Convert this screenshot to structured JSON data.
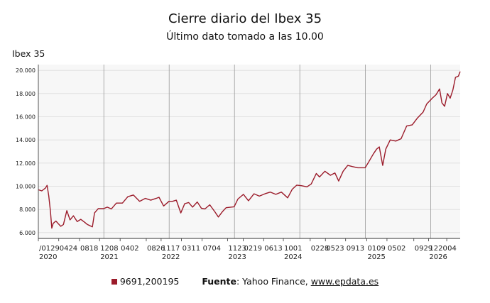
{
  "header": {
    "title": "Cierre diario del Ibex 35",
    "subtitle": "Último dato tomado a las 10.00"
  },
  "chart_data": {
    "type": "line",
    "ylabel": "Ibex 35",
    "ylim": [
      5500,
      20500
    ],
    "yticks": [
      {
        "value": 6000,
        "label": "6.000"
      },
      {
        "value": 8000,
        "label": "8.000"
      },
      {
        "value": 10000,
        "label": "10.000"
      },
      {
        "value": 12000,
        "label": "12.000"
      },
      {
        "value": 14000,
        "label": "14.000"
      },
      {
        "value": 16000,
        "label": "16.000"
      },
      {
        "value": 18000,
        "label": "18.000"
      },
      {
        "value": 20000,
        "label": "20.000"
      }
    ],
    "xlim": [
      "2020-01-01",
      "2026-06-15"
    ],
    "xticks": [
      {
        "date": "2020-01-01",
        "label": "/0129",
        "year": "2020"
      },
      {
        "date": "2020-04-24",
        "label": "0424"
      },
      {
        "date": "2020-08-18",
        "label": "0818"
      },
      {
        "date": "2020-12-08",
        "label": "1208",
        "year": "2021"
      },
      {
        "date": "2021-04-02",
        "label": "0402"
      },
      {
        "date": "2021-08-26",
        "label": "0826"
      },
      {
        "date": "2021-11-17",
        "label": "1117",
        "year": "2022"
      },
      {
        "date": "2022-03-11",
        "label": "0311"
      },
      {
        "date": "2022-07-04",
        "label": "0704"
      },
      {
        "date": "2022-11-23",
        "label": "1123",
        "year": "2023"
      },
      {
        "date": "2023-02-19",
        "label": "0219"
      },
      {
        "date": "2023-06-13",
        "label": "0613"
      },
      {
        "date": "2023-10-01",
        "label": "1001",
        "year": "2024"
      },
      {
        "date": "2024-02-28",
        "label": "0228"
      },
      {
        "date": "2024-05-23",
        "label": "0523"
      },
      {
        "date": "2024-09-13",
        "label": "0913"
      },
      {
        "date": "2025-01-09",
        "label": "0109",
        "year": "2025"
      },
      {
        "date": "2025-05-02",
        "label": "0502"
      },
      {
        "date": "2025-09-29",
        "label": "0929"
      },
      {
        "date": "2025-12-20",
        "label": "1220",
        "year": "2026"
      },
      {
        "date": "2026-04-01",
        "label": "04"
      }
    ],
    "vgrid_dates": [
      "2020-01-01",
      "2021-01-01",
      "2022-01-01",
      "2023-01-01",
      "2024-01-01",
      "2025-01-01",
      "2026-01-01"
    ],
    "grid": true,
    "legend": "bottom-center",
    "series": [
      {
        "name": "9691,200195",
        "color": "#9b1b2a",
        "points": [
          [
            "2020-01-02",
            9691
          ],
          [
            "2020-01-20",
            9600
          ],
          [
            "2020-02-10",
            9850
          ],
          [
            "2020-02-19",
            10080
          ],
          [
            "2020-02-28",
            9200
          ],
          [
            "2020-03-09",
            7800
          ],
          [
            "2020-03-16",
            6390
          ],
          [
            "2020-03-24",
            6800
          ],
          [
            "2020-04-08",
            7000
          ],
          [
            "2020-04-20",
            6800
          ],
          [
            "2020-05-05",
            6550
          ],
          [
            "2020-05-20",
            6700
          ],
          [
            "2020-06-08",
            7900
          ],
          [
            "2020-06-26",
            7100
          ],
          [
            "2020-07-15",
            7450
          ],
          [
            "2020-08-05",
            6950
          ],
          [
            "2020-08-25",
            7150
          ],
          [
            "2020-09-15",
            6900
          ],
          [
            "2020-10-01",
            6700
          ],
          [
            "2020-10-29",
            6500
          ],
          [
            "2020-11-10",
            7700
          ],
          [
            "2020-12-01",
            8080
          ],
          [
            "2020-12-31",
            8070
          ],
          [
            "2021-01-20",
            8200
          ],
          [
            "2021-02-12",
            8050
          ],
          [
            "2021-03-12",
            8550
          ],
          [
            "2021-04-15",
            8550
          ],
          [
            "2021-05-15",
            9100
          ],
          [
            "2021-06-15",
            9250
          ],
          [
            "2021-07-20",
            8700
          ],
          [
            "2021-08-20",
            8950
          ],
          [
            "2021-09-20",
            8800
          ],
          [
            "2021-10-20",
            8950
          ],
          [
            "2021-11-05",
            9050
          ],
          [
            "2021-12-01",
            8300
          ],
          [
            "2021-12-31",
            8700
          ],
          [
            "2022-01-20",
            8700
          ],
          [
            "2022-02-10",
            8800
          ],
          [
            "2022-03-07",
            7700
          ],
          [
            "2022-03-29",
            8500
          ],
          [
            "2022-04-20",
            8600
          ],
          [
            "2022-05-12",
            8200
          ],
          [
            "2022-06-07",
            8650
          ],
          [
            "2022-06-30",
            8100
          ],
          [
            "2022-07-20",
            8050
          ],
          [
            "2022-08-16",
            8400
          ],
          [
            "2022-09-13",
            7800
          ],
          [
            "2022-10-03",
            7350
          ],
          [
            "2022-10-25",
            7800
          ],
          [
            "2022-11-15",
            8150
          ],
          [
            "2022-12-30",
            8230
          ],
          [
            "2023-01-20",
            8900
          ],
          [
            "2023-02-20",
            9300
          ],
          [
            "2023-03-20",
            8750
          ],
          [
            "2023-04-20",
            9350
          ],
          [
            "2023-05-20",
            9150
          ],
          [
            "2023-06-20",
            9350
          ],
          [
            "2023-07-20",
            9500
          ],
          [
            "2023-08-20",
            9300
          ],
          [
            "2023-09-20",
            9500
          ],
          [
            "2023-10-25",
            9000
          ],
          [
            "2023-11-20",
            9750
          ],
          [
            "2023-12-15",
            10100
          ],
          [
            "2024-01-10",
            10050
          ],
          [
            "2024-02-10",
            9950
          ],
          [
            "2024-03-05",
            10200
          ],
          [
            "2024-04-02",
            11100
          ],
          [
            "2024-04-20",
            10800
          ],
          [
            "2024-05-20",
            11300
          ],
          [
            "2024-06-20",
            10950
          ],
          [
            "2024-07-15",
            11150
          ],
          [
            "2024-08-05",
            10450
          ],
          [
            "2024-08-30",
            11300
          ],
          [
            "2024-09-25",
            11800
          ],
          [
            "2024-10-20",
            11700
          ],
          [
            "2024-11-20",
            11600
          ],
          [
            "2024-12-31",
            11600
          ],
          [
            "2025-01-20",
            12100
          ],
          [
            "2025-02-15",
            12800
          ],
          [
            "2025-03-05",
            13200
          ],
          [
            "2025-03-20",
            13400
          ],
          [
            "2025-04-08",
            11800
          ],
          [
            "2025-04-25",
            13200
          ],
          [
            "2025-05-20",
            14000
          ],
          [
            "2025-06-20",
            13900
          ],
          [
            "2025-07-20",
            14100
          ],
          [
            "2025-08-20",
            15200
          ],
          [
            "2025-09-20",
            15300
          ],
          [
            "2025-10-20",
            15900
          ],
          [
            "2025-11-20",
            16400
          ],
          [
            "2025-12-10",
            17100
          ],
          [
            "2026-01-10",
            17600
          ],
          [
            "2026-01-31",
            17900
          ],
          [
            "2026-02-20",
            18400
          ],
          [
            "2026-03-05",
            17200
          ],
          [
            "2026-03-20",
            16900
          ],
          [
            "2026-04-05",
            18000
          ],
          [
            "2026-04-20",
            17600
          ],
          [
            "2026-05-05",
            18300
          ],
          [
            "2026-05-20",
            19400
          ],
          [
            "2026-06-05",
            19500
          ],
          [
            "2026-06-15",
            19900
          ]
        ]
      }
    ]
  },
  "legend": {
    "series_label": "9691,200195",
    "source_label": "Fuente",
    "source_text": ": Yahoo Finance, ",
    "source_link": "www.epdata.es"
  }
}
